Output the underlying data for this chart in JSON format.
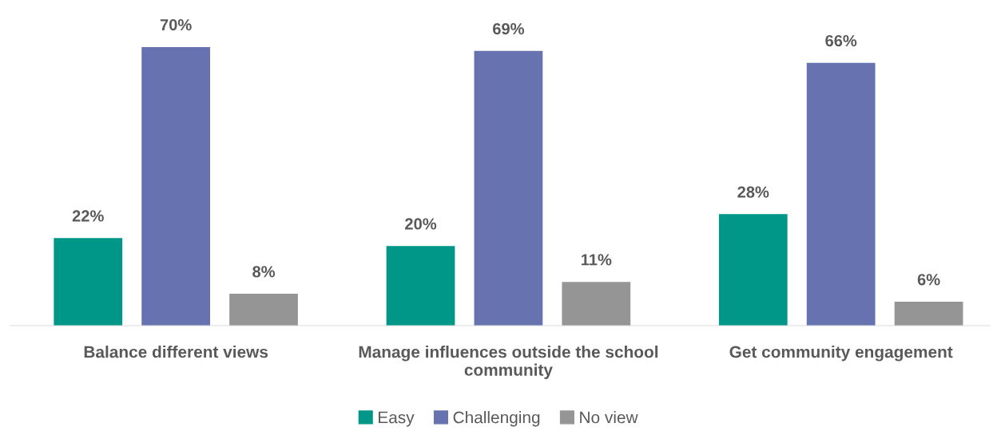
{
  "chart_data": {
    "type": "bar",
    "categories": [
      "Balance different views",
      "Manage influences outside the school community",
      "Get community engagement"
    ],
    "series": [
      {
        "name": "Easy",
        "color": "#009688",
        "values": [
          22,
          20,
          28
        ],
        "value_labels": [
          "22%",
          "20%",
          "28%"
        ]
      },
      {
        "name": "Challenging",
        "color": "#6673b0",
        "values": [
          70,
          69,
          66
        ],
        "value_labels": [
          "70%",
          "69%",
          "66%"
        ]
      },
      {
        "name": "No view",
        "color": "#959595",
        "values": [
          8,
          11,
          6
        ],
        "value_labels": [
          "8%",
          "11%",
          "6%"
        ]
      }
    ],
    "legend": "bottom",
    "grid": false
  }
}
